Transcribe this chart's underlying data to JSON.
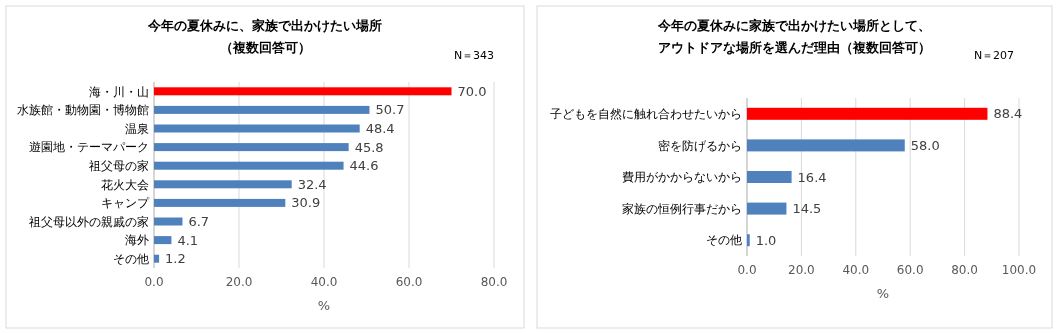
{
  "chart_data": [
    {
      "type": "bar",
      "orientation": "horizontal",
      "title": "今年の夏休みに、家族で出かけたい場所",
      "subtitle": "（複数回答可）",
      "annotations": [
        "N＝343"
      ],
      "xlabel": "%",
      "categories": [
        "海・川・山",
        "水族館・動物園・博物館",
        "温泉",
        "遊園地・テーマパーク",
        "祖父母の家",
        "花火大会",
        "キャンプ",
        "祖父母以外の親戚の家",
        "海外",
        "その他"
      ],
      "values": [
        70.0,
        50.7,
        48.4,
        45.8,
        44.6,
        32.4,
        30.9,
        6.7,
        4.1,
        1.2
      ],
      "value_labels": [
        "70.0",
        "50.7",
        "48.4",
        "45.8",
        "44.6",
        "32.4",
        "30.9",
        "6.7",
        "4.1",
        "1.2"
      ],
      "colors": [
        "#ff0000",
        "#4f81bd",
        "#4f81bd",
        "#4f81bd",
        "#4f81bd",
        "#4f81bd",
        "#4f81bd",
        "#4f81bd",
        "#4f81bd",
        "#4f81bd"
      ],
      "xlim": [
        0,
        80
      ],
      "xticks": [
        {
          "value": 0,
          "label": "0.0"
        },
        {
          "value": 20,
          "label": "20.0"
        },
        {
          "value": 40,
          "label": "40.0"
        },
        {
          "value": 60,
          "label": "60.0"
        },
        {
          "value": 80,
          "label": "80.0"
        }
      ],
      "grid": "x"
    },
    {
      "type": "bar",
      "orientation": "horizontal",
      "title": "今年の夏休みに家族で出かけたい場所として、",
      "subtitle": "アウトドアな場所を選んだ理由（複数回答可）",
      "annotations": [
        "N＝207"
      ],
      "xlabel": "%",
      "categories": [
        "子どもを自然に触れ合わせたいから",
        "密を防げるから",
        "費用がかからないから",
        "家族の恒例行事だから",
        "その他"
      ],
      "values": [
        88.4,
        58.0,
        16.4,
        14.5,
        1.0
      ],
      "value_labels": [
        "88.4",
        "58.0",
        "16.4",
        "14.5",
        "1.0"
      ],
      "colors": [
        "#ff0000",
        "#4f81bd",
        "#4f81bd",
        "#4f81bd",
        "#4f81bd"
      ],
      "xlim": [
        0,
        100
      ],
      "xticks": [
        {
          "value": 0,
          "label": "0.0"
        },
        {
          "value": 20,
          "label": "20.0"
        },
        {
          "value": 40,
          "label": "40.0"
        },
        {
          "value": 60,
          "label": "60.0"
        },
        {
          "value": 80,
          "label": "80.0"
        },
        {
          "value": 100,
          "label": "100.0"
        }
      ],
      "grid": "x"
    }
  ]
}
